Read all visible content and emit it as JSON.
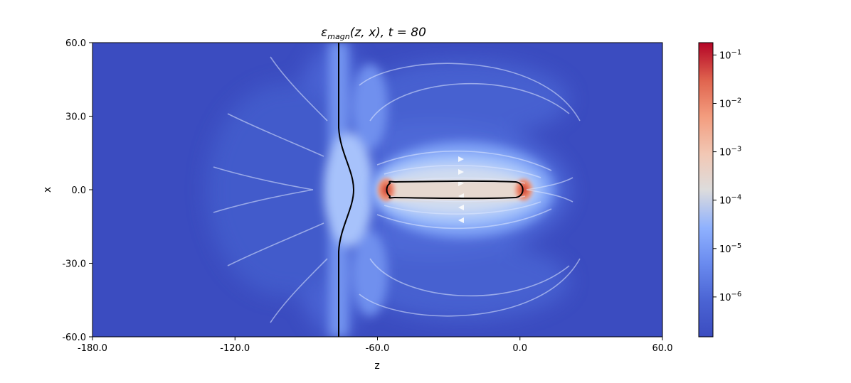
{
  "chart_data": {
    "type": "heatmap",
    "title_main": "ε",
    "title_sub": "magn",
    "title_rest": "(z, x), t = 80",
    "xlabel": "z",
    "ylabel": "x",
    "xlim": [
      -180,
      60
    ],
    "ylim": [
      -60,
      60
    ],
    "xticks": [
      -180,
      -120,
      -60,
      0,
      60
    ],
    "xtick_labels": [
      "-180.0",
      "-120.0",
      "-60.0",
      "0.0",
      "60.0"
    ],
    "yticks": [
      -60,
      -30,
      0,
      30,
      60
    ],
    "ytick_labels": [
      "-60.0",
      "-30.0",
      "0.0",
      "30.0",
      "60.0"
    ],
    "colormap": "coolwarm",
    "colorbar": {
      "scale": "log",
      "range": [
        1.5e-07,
        0.18
      ],
      "ticks": [
        {
          "value": 1e-06,
          "base": "10",
          "exp": "−6"
        },
        {
          "value": 1e-05,
          "base": "10",
          "exp": "−5"
        },
        {
          "value": 0.0001,
          "base": "10",
          "exp": "−4"
        },
        {
          "value": 0.001,
          "base": "10",
          "exp": "−3"
        },
        {
          "value": 0.01,
          "base": "10",
          "exp": "−2"
        },
        {
          "value": 0.1,
          "base": "10",
          "exp": "−1"
        }
      ]
    },
    "features": {
      "interface_line_z": -69,
      "interface_bulge_max_z": -64,
      "hot_region": {
        "z_range": [
          -58,
          1
        ],
        "x_range": [
          -4,
          4
        ]
      },
      "background_value": 2e-07
    }
  }
}
